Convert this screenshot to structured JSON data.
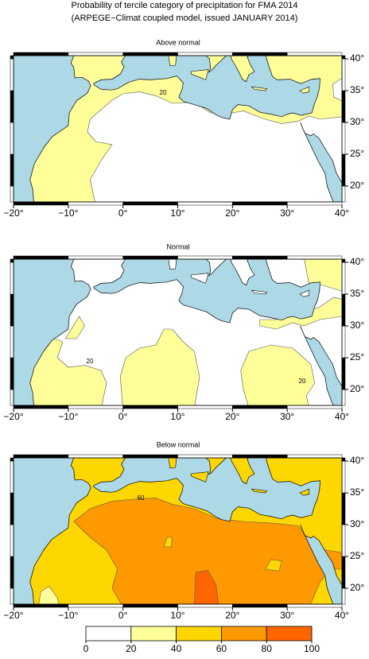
{
  "title": "Probability of tercile category of precipitation for FMA 2014",
  "subtitle": "(ARPEGE−Climat coupled model, issued JANUARY 2014)",
  "map": {
    "xlim": [
      -20,
      40
    ],
    "ylim": [
      17.5,
      40.5
    ],
    "xticks": [
      {
        "value": -20,
        "label": "−20°"
      },
      {
        "value": -10,
        "label": "−10°"
      },
      {
        "value": 0,
        "label": "0°"
      },
      {
        "value": 10,
        "label": "10°"
      },
      {
        "value": 20,
        "label": "20°"
      },
      {
        "value": 30,
        "label": "30°"
      },
      {
        "value": 40,
        "label": "40°"
      }
    ],
    "yticks": [
      {
        "value": 20,
        "label": "20°"
      },
      {
        "value": 25,
        "label": "25°"
      },
      {
        "value": 30,
        "label": "30°"
      },
      {
        "value": 35,
        "label": "35°"
      },
      {
        "value": 40,
        "label": "40°"
      }
    ]
  },
  "panels": [
    {
      "title": "Above normal",
      "contour_labels": [
        "20"
      ]
    },
    {
      "title": "Normal",
      "contour_labels": [
        "20",
        "20"
      ]
    },
    {
      "title": "Below normal",
      "contour_labels": [
        "60"
      ]
    }
  ],
  "colorbar": {
    "ticks": [
      0,
      20,
      40,
      60,
      80,
      100
    ],
    "colors": [
      "#ffffff",
      "#ffff99",
      "#ffd700",
      "#ff9900",
      "#ff6600"
    ]
  }
}
